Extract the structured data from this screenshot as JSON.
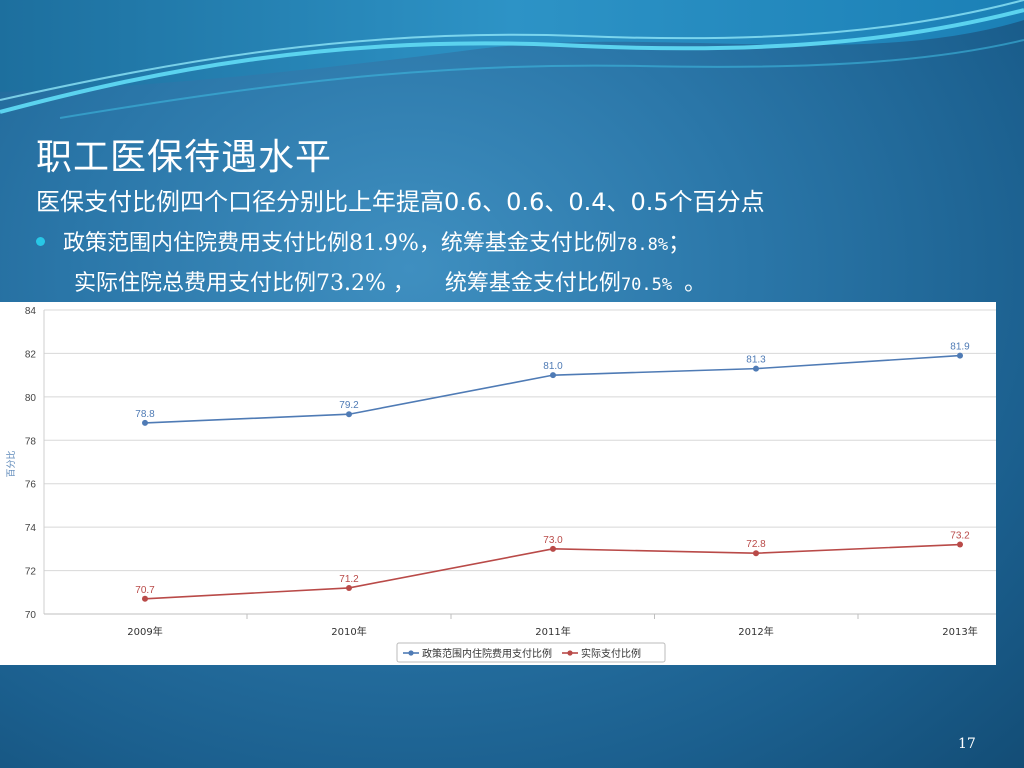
{
  "slide": {
    "title": "职工医保待遇水平",
    "subtitle": "医保支付比例四个口径分别比上年提高0.6、0.6、0.4、0.5个百分点",
    "bullet": {
      "text1": "政策范围内住院费用支付比例",
      "value1": "81.9%",
      "text2": "，统筹基金支付比例",
      "value2": "78.8%",
      "end": "；"
    },
    "line2": {
      "text1": "实际住院总费用支付比例",
      "value1": "73.2%",
      "sep": "，",
      "text2": "统筹基金支付比例",
      "value2": "70.5%",
      "end": "。"
    },
    "page_number": "17",
    "colors": {
      "bullet": "#28c7e6",
      "series1": "#4f7bb5",
      "series2": "#b94a48"
    }
  },
  "chart_data": {
    "type": "line",
    "categories": [
      "2009年",
      "2010年",
      "2011年",
      "2012年",
      "2013年"
    ],
    "series": [
      {
        "name": "政策范围内住院费用支付比例",
        "values": [
          78.8,
          79.2,
          81.0,
          81.3,
          81.9
        ],
        "labels": [
          "78.8",
          "79.2",
          "81.0",
          "81.3",
          "81.9"
        ],
        "color": "#4f7bb5"
      },
      {
        "name": "实际支付比例",
        "values": [
          70.7,
          71.2,
          73.0,
          72.8,
          73.2
        ],
        "labels": [
          "70.7",
          "71.2",
          "73.0",
          "72.8",
          "73.2"
        ],
        "color": "#b94a48"
      }
    ],
    "ylabel": "百分比",
    "ylim": [
      70,
      84
    ],
    "yticks": [
      "70",
      "72",
      "74",
      "76",
      "78",
      "80",
      "82",
      "84"
    ],
    "grid": true,
    "legend": "bottom"
  }
}
